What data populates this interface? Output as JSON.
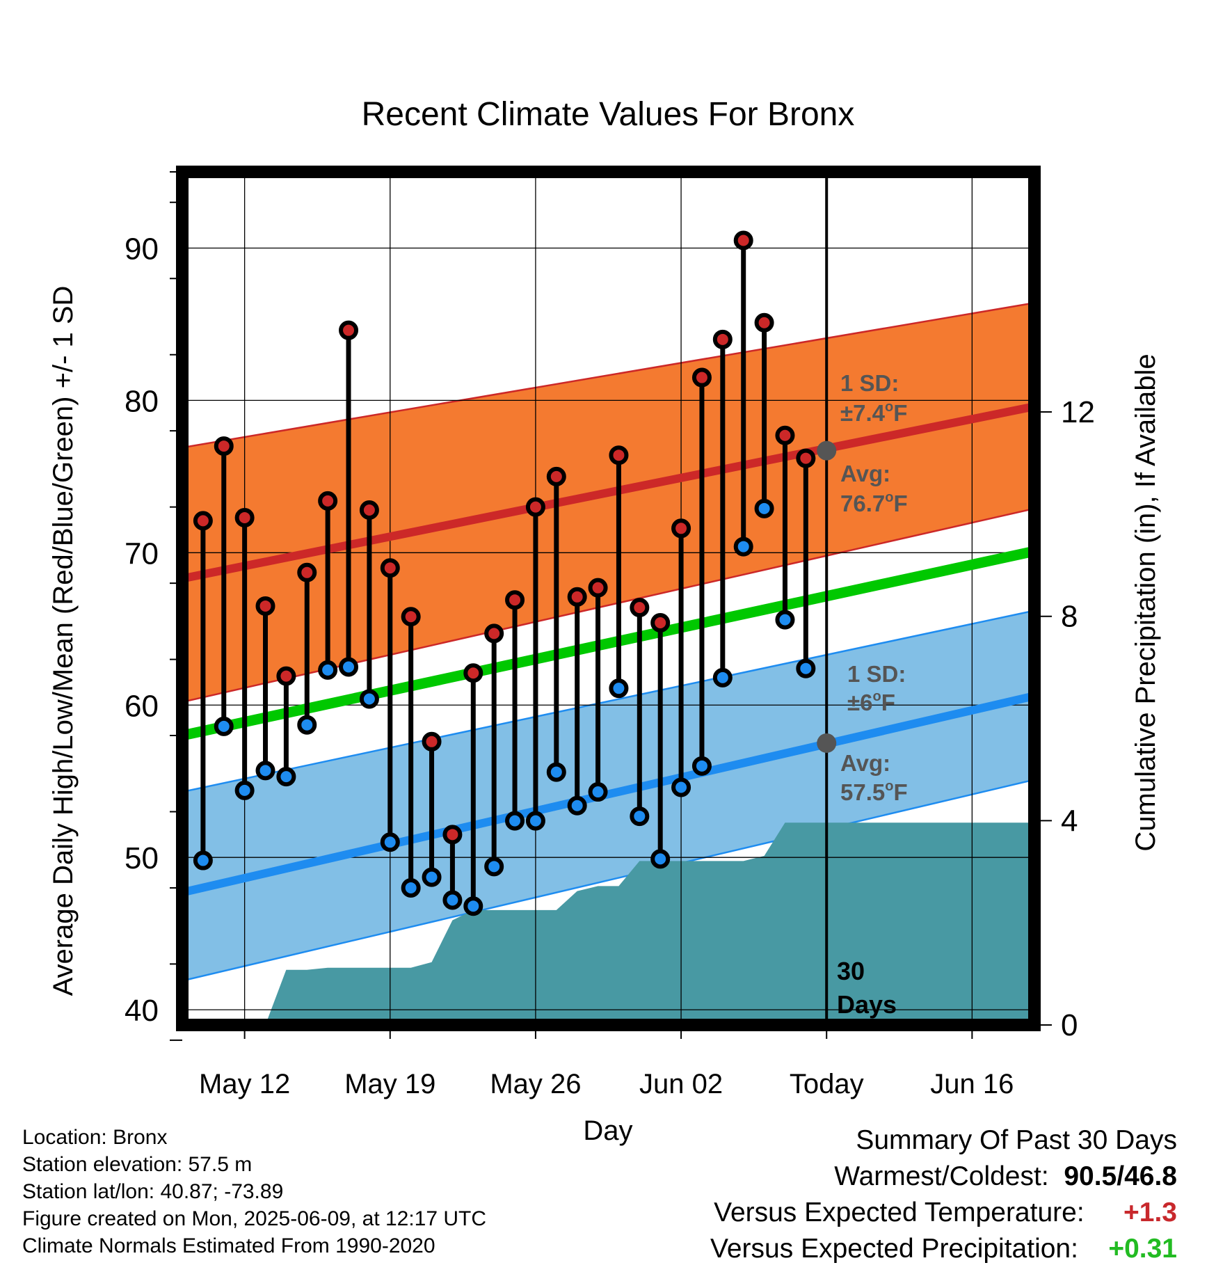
{
  "chart_data": {
    "type": "line",
    "title": "Recent Climate Values For Bronx",
    "xlabel": "Day",
    "ylabel": "Average Daily High/Low/Mean (Red/Blue/Green) +/- 1 SD",
    "y2label": "Cumulative Precipitation (in), If Available",
    "x_tick_labels": [
      "May 12",
      "May 19",
      "May 26",
      "Jun 02",
      "Today",
      "Jun 16"
    ],
    "x_tick_dates": [
      "2025-05-12",
      "2025-05-19",
      "2025-05-26",
      "2025-06-02",
      "2025-06-09",
      "2025-06-16"
    ],
    "xlim": [
      "2025-05-09",
      "2025-06-19"
    ],
    "today": "2025-06-09",
    "ylim": [
      39,
      95
    ],
    "y_ticks": [
      40,
      50,
      60,
      70,
      80,
      90
    ],
    "y2lim": [
      0,
      16.7
    ],
    "y2_ticks": [
      0,
      4,
      8,
      12
    ],
    "grid": true,
    "daily": {
      "dates": [
        "2025-05-10",
        "2025-05-11",
        "2025-05-12",
        "2025-05-13",
        "2025-05-14",
        "2025-05-15",
        "2025-05-16",
        "2025-05-17",
        "2025-05-18",
        "2025-05-19",
        "2025-05-20",
        "2025-05-21",
        "2025-05-22",
        "2025-05-23",
        "2025-05-24",
        "2025-05-25",
        "2025-05-26",
        "2025-05-27",
        "2025-05-28",
        "2025-05-29",
        "2025-05-30",
        "2025-05-31",
        "2025-06-01",
        "2025-06-02",
        "2025-06-03",
        "2025-06-04",
        "2025-06-05",
        "2025-06-06",
        "2025-06-07",
        "2025-06-08"
      ],
      "high": [
        72.1,
        77.0,
        72.3,
        66.5,
        61.9,
        68.7,
        73.4,
        84.6,
        72.8,
        69.0,
        65.8,
        57.6,
        51.5,
        62.1,
        64.7,
        66.9,
        73.0,
        75.0,
        67.1,
        67.7,
        76.4,
        66.4,
        65.4,
        71.6,
        81.5,
        84.0,
        90.5,
        85.1,
        77.7,
        76.2
      ],
      "low": [
        49.8,
        58.6,
        54.4,
        55.7,
        55.3,
        58.7,
        62.3,
        62.5,
        60.4,
        51.0,
        48.0,
        48.7,
        47.2,
        46.8,
        49.4,
        52.4,
        52.4,
        55.6,
        53.4,
        54.3,
        61.1,
        52.7,
        49.9,
        54.6,
        56.0,
        61.8,
        70.4,
        72.9,
        65.6,
        62.4
      ]
    },
    "normals": {
      "dates": [
        "2025-05-09",
        "2025-06-19"
      ],
      "mean_high": [
        68.3,
        79.6
      ],
      "mean_low": [
        47.7,
        60.6
      ],
      "mean": [
        58.0,
        70.1
      ],
      "high_sd_band_upper": [
        76.9,
        86.4
      ],
      "high_sd_band_lower": [
        60.2,
        72.9
      ],
      "low_sd_band_upper": [
        54.3,
        66.2
      ],
      "low_sd_band_lower": [
        41.9,
        55.1
      ]
    },
    "annotations": {
      "high": {
        "sd_label": "1 SD:",
        "sd_value": "±7.4",
        "avg_label": "Avg:",
        "avg_value": "76.7",
        "unit": "F",
        "deg": "o",
        "value_at_today": 76.7
      },
      "low": {
        "sd_label": "1 SD:",
        "sd_value": "±6",
        "avg_label": "Avg:",
        "avg_value": "57.5",
        "unit": "F",
        "deg": "o",
        "value_at_today": 57.5
      },
      "days_label_1": "30",
      "days_label_2": "Days"
    },
    "precip_cumulative": {
      "dates": [
        "2025-05-10",
        "2025-05-11",
        "2025-05-12",
        "2025-05-13",
        "2025-05-14",
        "2025-05-15",
        "2025-05-16",
        "2025-05-17",
        "2025-05-18",
        "2025-05-19",
        "2025-05-20",
        "2025-05-21",
        "2025-05-22",
        "2025-05-23",
        "2025-05-24",
        "2025-05-25",
        "2025-05-26",
        "2025-05-27",
        "2025-05-28",
        "2025-05-29",
        "2025-05-30",
        "2025-05-31",
        "2025-06-01",
        "2025-06-02",
        "2025-06-03",
        "2025-06-04",
        "2025-06-05",
        "2025-06-06",
        "2025-06-07",
        "2025-06-08",
        "2025-06-09",
        "2025-06-19"
      ],
      "values": [
        0,
        0,
        0,
        0,
        1.08,
        1.08,
        1.12,
        1.12,
        1.12,
        1.12,
        1.12,
        1.23,
        2.05,
        2.25,
        2.25,
        2.25,
        2.25,
        2.25,
        2.62,
        2.72,
        2.72,
        3.21,
        3.21,
        3.21,
        3.21,
        3.21,
        3.21,
        3.31,
        3.96,
        3.96,
        3.96,
        3.96
      ]
    },
    "colors": {
      "high_band": "#f47a30",
      "high_line": "#cc2828",
      "low_band": "#82bfe6",
      "low_line": "#1e8cf0",
      "mean_line": "#00c800",
      "precip": "#4899a3",
      "high_marker": "#cc2828",
      "low_marker": "#1e8cf0",
      "annotation": "#555555"
    }
  },
  "info": {
    "location": "Location: Bronx",
    "elevation": "Station elevation: 57.5 m",
    "latlon": "Station lat/lon: 40.87; -73.89",
    "created": "Figure created on Mon, 2025-06-09, at 12:17 UTC",
    "normals": "Climate Normals Estimated From 1990-2020"
  },
  "summary": {
    "title": "Summary Of Past 30 Days",
    "warm_cold_label": "Warmest/Coldest:",
    "warmest": "90.5",
    "separator": "/",
    "coldest": "46.8",
    "temp_label": "Versus Expected Temperature:",
    "temp_value": "+1.3",
    "precip_label": "Versus Expected Precipitation:",
    "precip_value": "+0.31"
  }
}
